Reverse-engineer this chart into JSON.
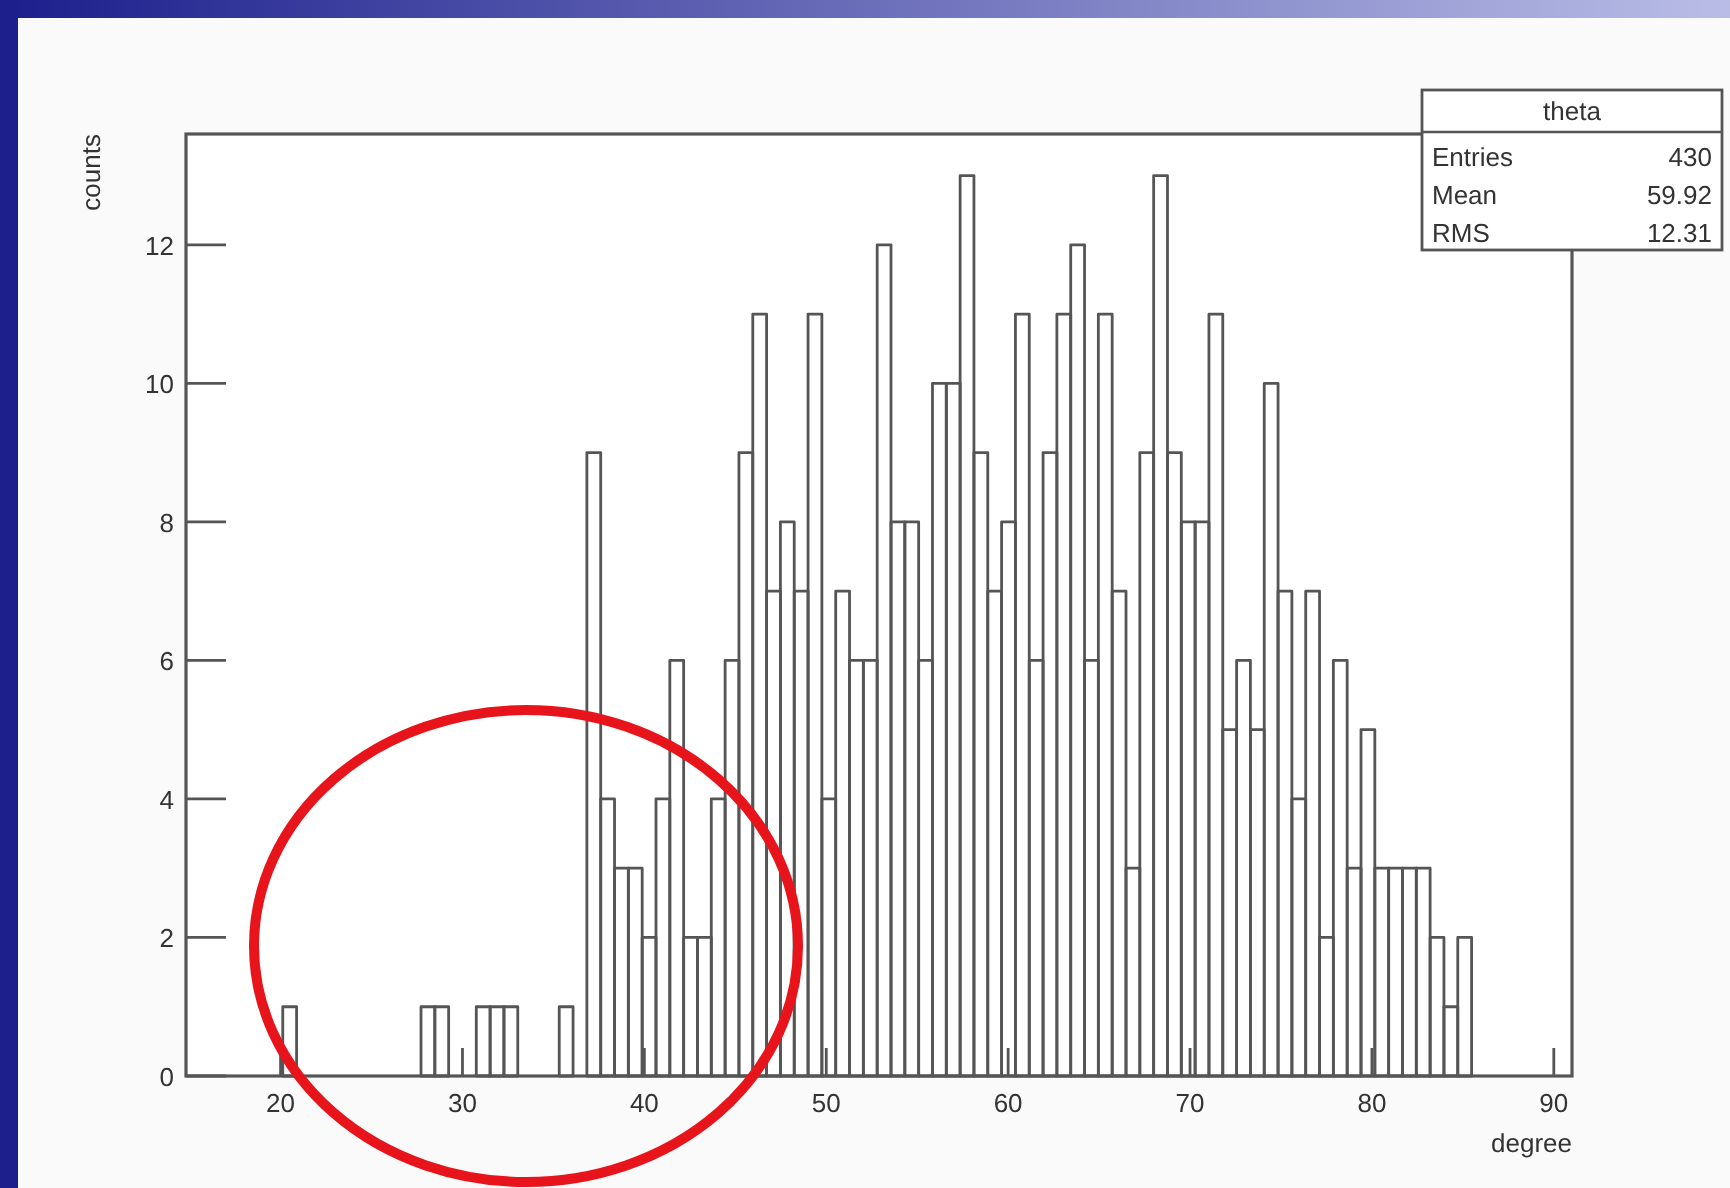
{
  "chart_data": {
    "type": "histogram",
    "title": "theta",
    "xlabel": "degree",
    "ylabel": "counts",
    "annotations": [
      "Entries",
      "430",
      "Mean",
      "59.92",
      "RMS",
      "12.31"
    ],
    "bins": [
      20.12,
      20.88,
      21.64,
      22.4,
      23.16,
      23.92,
      24.68,
      25.44,
      26.2,
      26.96,
      27.72,
      28.48,
      29.24,
      30.0,
      30.76,
      31.52,
      32.28,
      33.04,
      33.8,
      34.56,
      35.32,
      36.08,
      36.84,
      37.6,
      38.36,
      39.12,
      39.88,
      40.64,
      41.4,
      42.16,
      42.92,
      43.68,
      44.44,
      45.2,
      45.96,
      46.72,
      47.48,
      48.24,
      49.0,
      49.76,
      50.52,
      51.28,
      52.04,
      52.8,
      53.56,
      54.32,
      55.08,
      55.84,
      56.6,
      57.36,
      58.12,
      58.88,
      59.64,
      60.4,
      61.16,
      61.92,
      62.68,
      63.44,
      64.2,
      64.96,
      65.72,
      66.48,
      67.24,
      68.0,
      68.76,
      69.52,
      70.28,
      71.04,
      71.8,
      72.56,
      73.32,
      74.08,
      74.84,
      75.6,
      76.36,
      77.12,
      77.88,
      78.64,
      79.4,
      80.16,
      80.92,
      81.68,
      82.44,
      83.2,
      83.96,
      84.72,
      85.48
    ],
    "values": [
      1,
      0,
      0,
      0,
      0,
      0,
      0,
      0,
      0,
      0,
      1,
      1,
      0,
      0,
      1,
      1,
      1,
      0,
      0,
      0,
      1,
      0,
      9,
      4,
      3,
      3,
      2,
      4,
      6,
      2,
      2,
      4,
      6,
      9,
      11,
      7,
      8,
      7,
      11,
      4,
      7,
      6,
      6,
      12,
      8,
      8,
      6,
      10,
      10,
      13,
      9,
      7,
      8,
      11,
      6,
      9,
      11,
      12,
      6,
      11,
      7,
      3,
      9,
      13,
      9,
      8,
      8,
      11,
      5,
      6,
      5,
      10,
      7,
      4,
      7,
      2,
      6,
      3,
      5,
      3,
      3,
      3,
      3,
      2,
      1,
      2
    ],
    "color": "#555555",
    "xlim": [
      14.8,
      91
    ],
    "xticks": [
      20,
      30,
      40,
      50,
      60,
      70,
      80,
      90
    ],
    "ylim": [
      0,
      13.6
    ],
    "yticks": [
      0,
      2,
      4,
      6,
      8,
      10,
      12
    ],
    "grid": false
  }
}
